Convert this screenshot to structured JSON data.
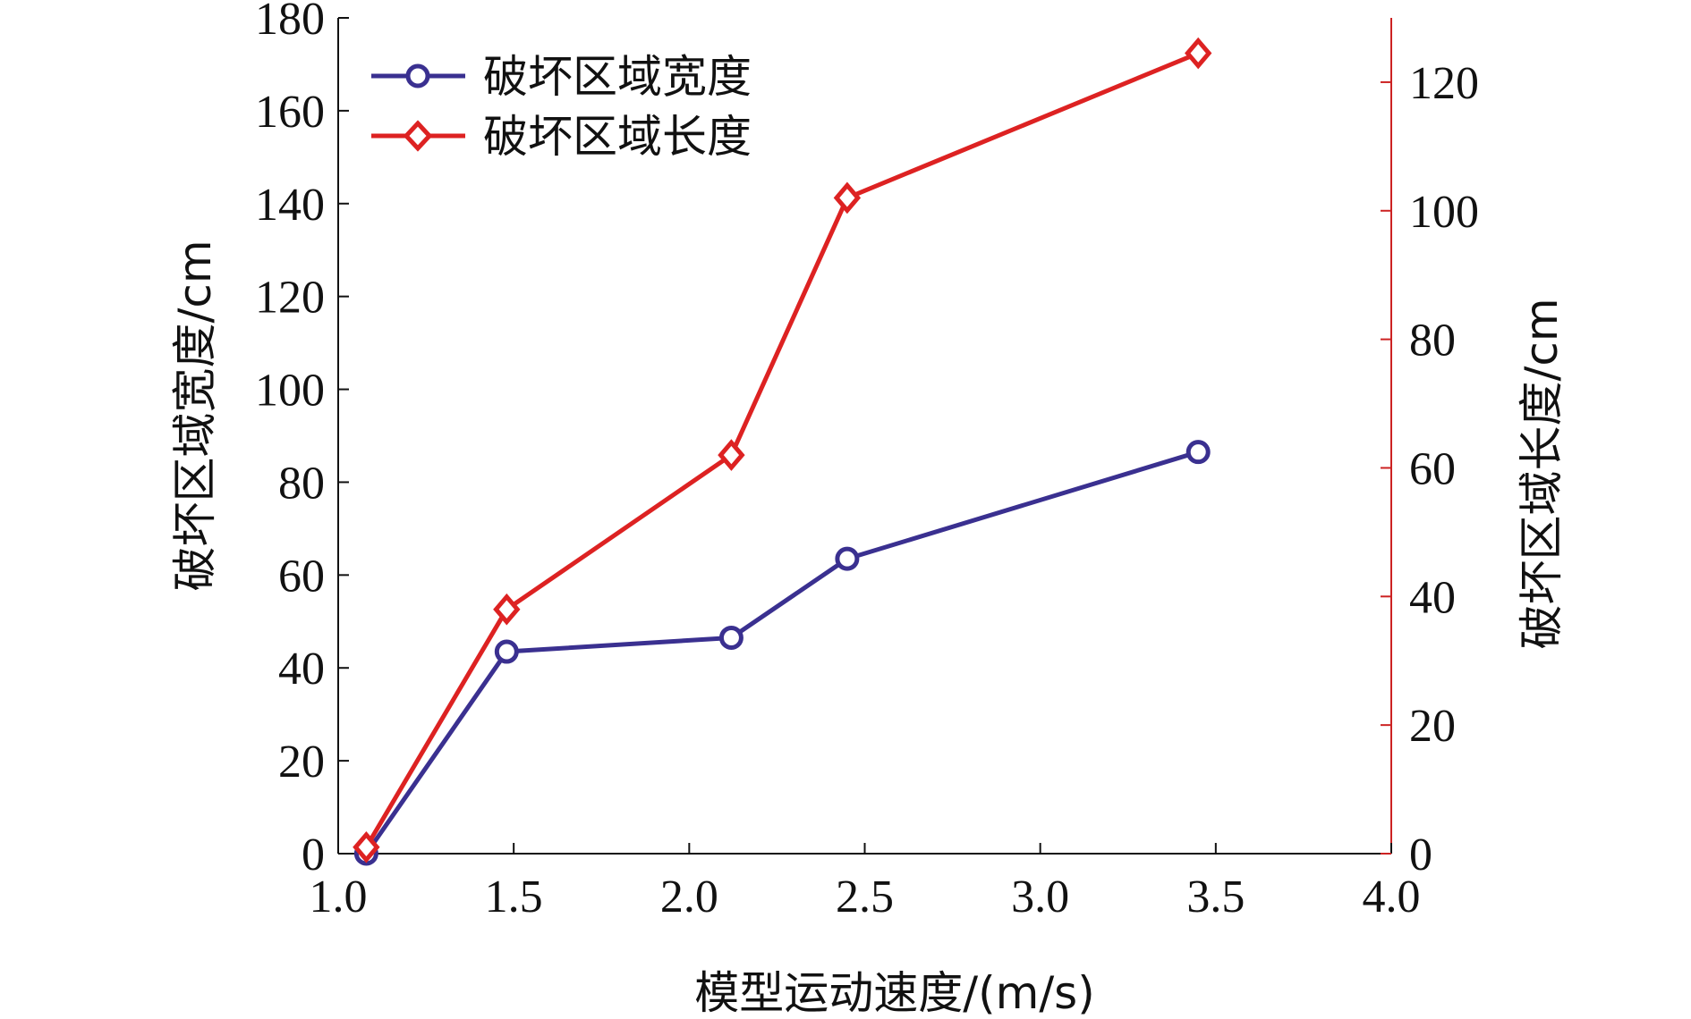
{
  "chart_data": {
    "type": "line",
    "xlabel": "模型运动速度/(m/s)",
    "xlim": [
      1.0,
      4.0
    ],
    "xticks": [
      "1.0",
      "1.5",
      "2.0",
      "2.5",
      "3.0",
      "3.5",
      "4.0"
    ],
    "y_left": {
      "label": "破坏区域宽度/cm",
      "lim": [
        0,
        180
      ],
      "ticks": [
        "0",
        "20",
        "40",
        "60",
        "80",
        "100",
        "120",
        "140",
        "160",
        "180"
      ]
    },
    "y_right": {
      "label": "破坏区域长度/cm",
      "lim": [
        0,
        130
      ],
      "ticks": [
        "0",
        "20",
        "40",
        "60",
        "80",
        "100",
        "120"
      ],
      "color": "#cc2222"
    },
    "series": [
      {
        "name": "破坏区域宽度",
        "axis": "left",
        "color": "#3a3090",
        "marker": "circle",
        "x": [
          1.08,
          1.48,
          2.12,
          2.45,
          3.45
        ],
        "values": [
          0,
          43.5,
          46.5,
          63.5,
          86.5
        ]
      },
      {
        "name": "破坏区域长度",
        "axis": "right",
        "color": "#dd2222",
        "marker": "diamond",
        "x": [
          1.08,
          1.48,
          2.12,
          2.45,
          3.45
        ],
        "values": [
          1,
          38,
          62,
          102,
          124.5
        ]
      }
    ],
    "legend": "top-left",
    "grid": false
  }
}
